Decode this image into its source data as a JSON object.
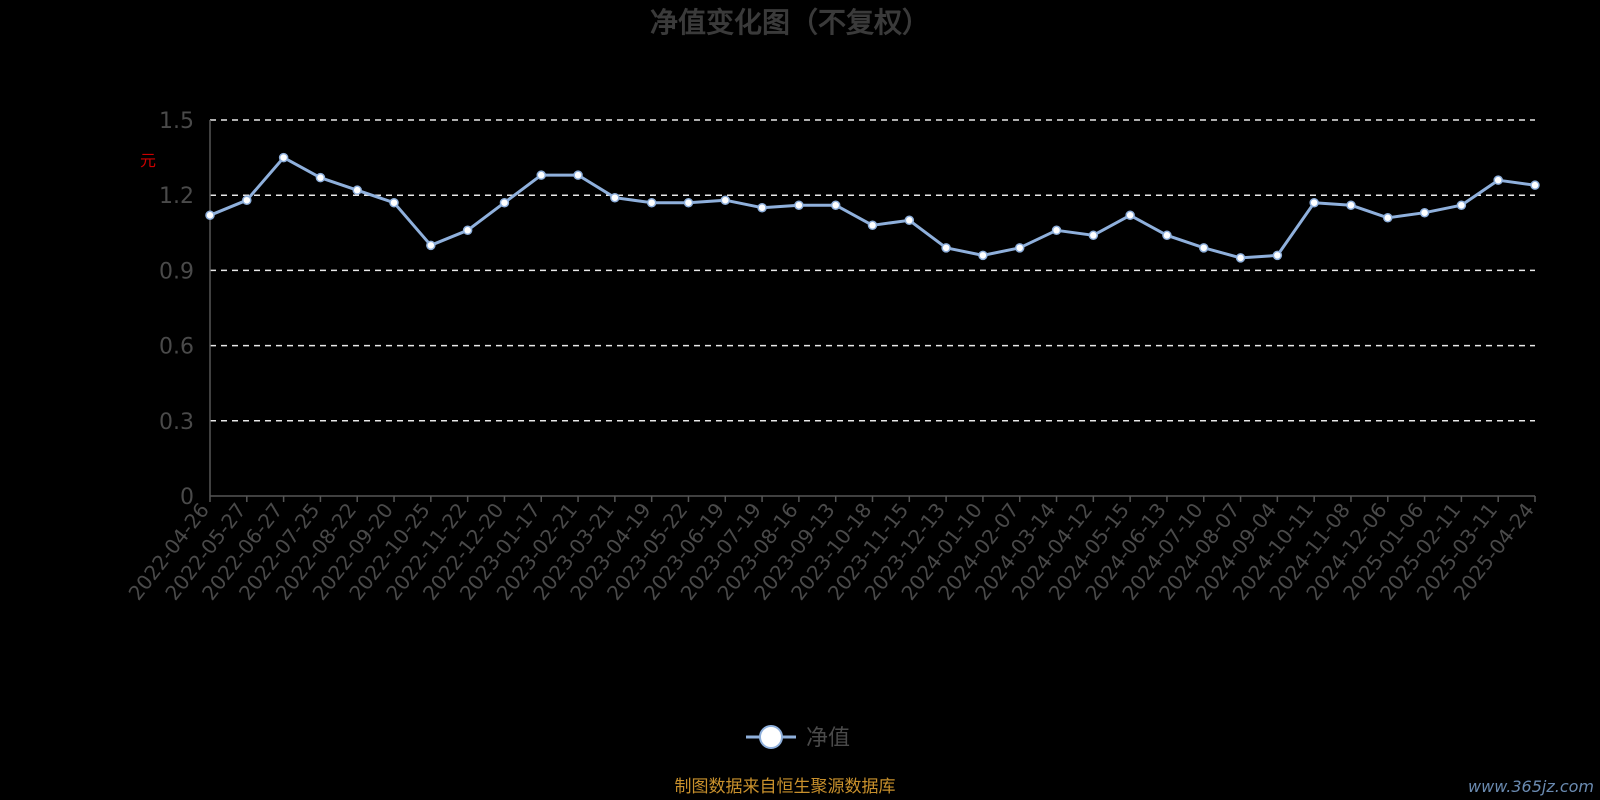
{
  "chart_data": {
    "type": "line",
    "title": "净值变化图（不复权）",
    "y_unit_label": "元",
    "ylim": [
      0,
      1.5
    ],
    "yticks": [
      "0",
      "0.3",
      "0.6",
      "0.9",
      "1.2",
      "1.5"
    ],
    "grid": true,
    "legend_position": "bottom-center",
    "series": [
      {
        "name": "净值",
        "color": "#8fb0dc",
        "x": [
          "2022-04-26",
          "2022-05-27",
          "2022-06-27",
          "2022-07-25",
          "2022-08-22",
          "2022-09-20",
          "2022-10-25",
          "2022-11-22",
          "2022-12-20",
          "2023-01-17",
          "2023-02-21",
          "2023-03-21",
          "2023-04-19",
          "2023-05-22",
          "2023-06-19",
          "2023-07-19",
          "2023-08-16",
          "2023-09-13",
          "2023-10-18",
          "2023-11-15",
          "2023-12-13",
          "2024-01-10",
          "2024-02-07",
          "2024-03-14",
          "2024-04-12",
          "2024-05-15",
          "2024-06-13",
          "2024-07-10",
          "2024-08-07",
          "2024-09-04",
          "2024-10-11",
          "2024-11-08",
          "2024-12-06",
          "2025-01-06",
          "2025-02-11",
          "2025-03-11",
          "2025-04-24"
        ],
        "values": [
          1.12,
          1.18,
          1.35,
          1.27,
          1.22,
          1.17,
          1.0,
          1.06,
          1.17,
          1.28,
          1.28,
          1.19,
          1.17,
          1.17,
          1.18,
          1.15,
          1.16,
          1.16,
          1.08,
          1.1,
          0.99,
          0.96,
          0.99,
          1.06,
          1.04,
          1.12,
          1.04,
          0.99,
          0.95,
          0.96,
          1.17,
          1.16,
          1.11,
          1.13,
          1.16,
          1.26,
          1.24
        ]
      }
    ],
    "source_note": "制图数据来自恒生聚源数据库",
    "watermark": "www.365jz.com"
  }
}
